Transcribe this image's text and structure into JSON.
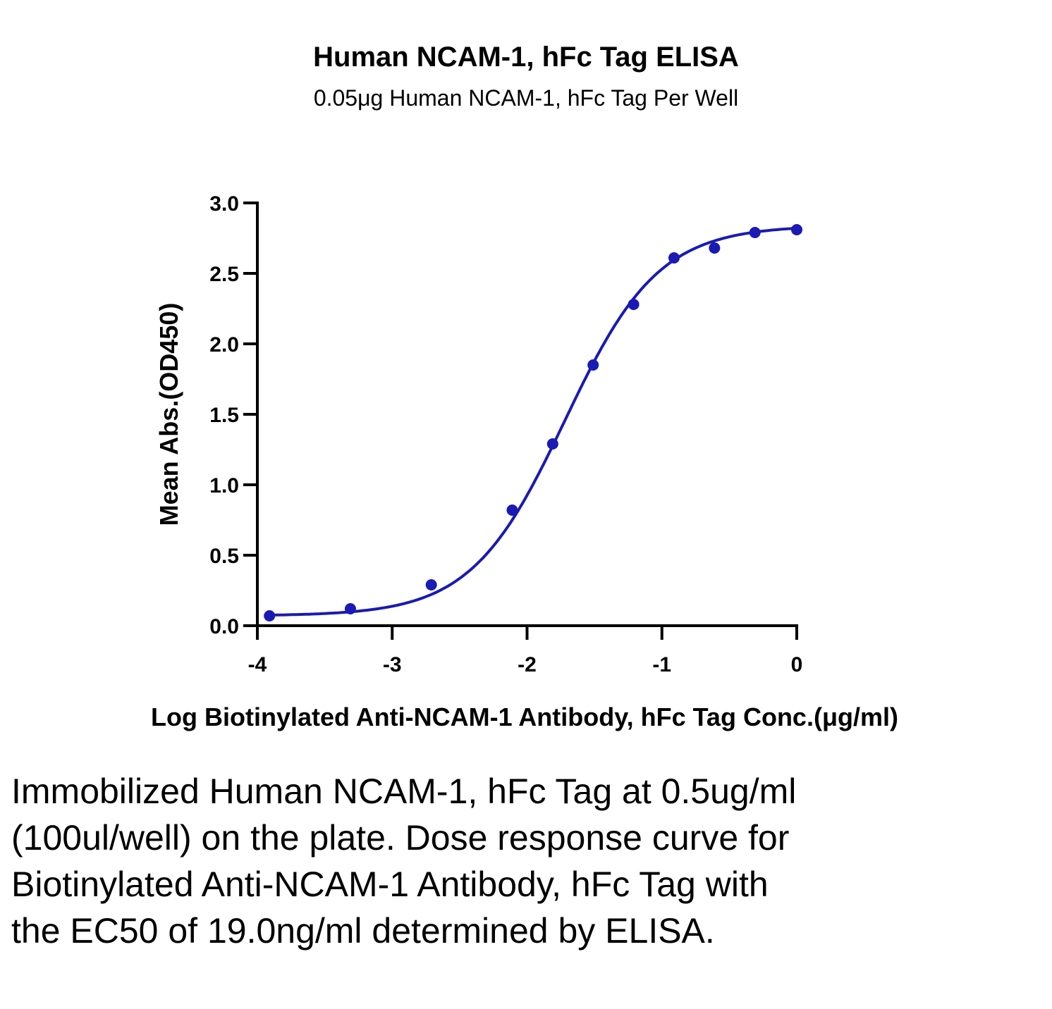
{
  "chart_data": {
    "type": "scatter",
    "title": "Human NCAM-1, hFc Tag ELISA",
    "subtitle": "0.05μg Human NCAM-1, hFc Tag Per Well",
    "xlabel": "Log Biotinylated Anti-NCAM-1 Antibody, hFc Tag Conc.(μg/ml)",
    "ylabel": "Mean Abs.(OD450)",
    "xlim": [
      -4,
      0
    ],
    "ylim": [
      0,
      3.0
    ],
    "xticks": [
      "-4",
      "-3",
      "-2",
      "-1",
      "0"
    ],
    "yticks": [
      "0.0",
      "0.5",
      "1.0",
      "1.5",
      "2.0",
      "2.5",
      "3.0"
    ],
    "grid": false,
    "color": "#1a1ab4",
    "series": [
      {
        "points": [
          {
            "x": -3.91,
            "y": 0.07
          },
          {
            "x": -3.31,
            "y": 0.12
          },
          {
            "x": -2.71,
            "y": 0.29
          },
          {
            "x": -2.11,
            "y": 0.82
          },
          {
            "x": -1.81,
            "y": 1.29
          },
          {
            "x": -1.51,
            "y": 1.85
          },
          {
            "x": -1.21,
            "y": 2.28
          },
          {
            "x": -0.91,
            "y": 2.61
          },
          {
            "x": -0.61,
            "y": 2.68
          },
          {
            "x": -0.31,
            "y": 2.79
          },
          {
            "x": 0.0,
            "y": 2.81
          }
        ],
        "fit": {
          "model": "4PL",
          "bottom": 0.07,
          "top": 2.84,
          "log_ec50": -1.72,
          "hill": 1.25
        }
      }
    ]
  },
  "caption": "Immobilized Human NCAM-1, hFc Tag at 0.5ug/ml (100ul/well) on the plate. Dose response curve for Biotinylated Anti-NCAM-1 Antibody, hFc Tag with the EC50 of 19.0ng/ml determined by ELISA."
}
